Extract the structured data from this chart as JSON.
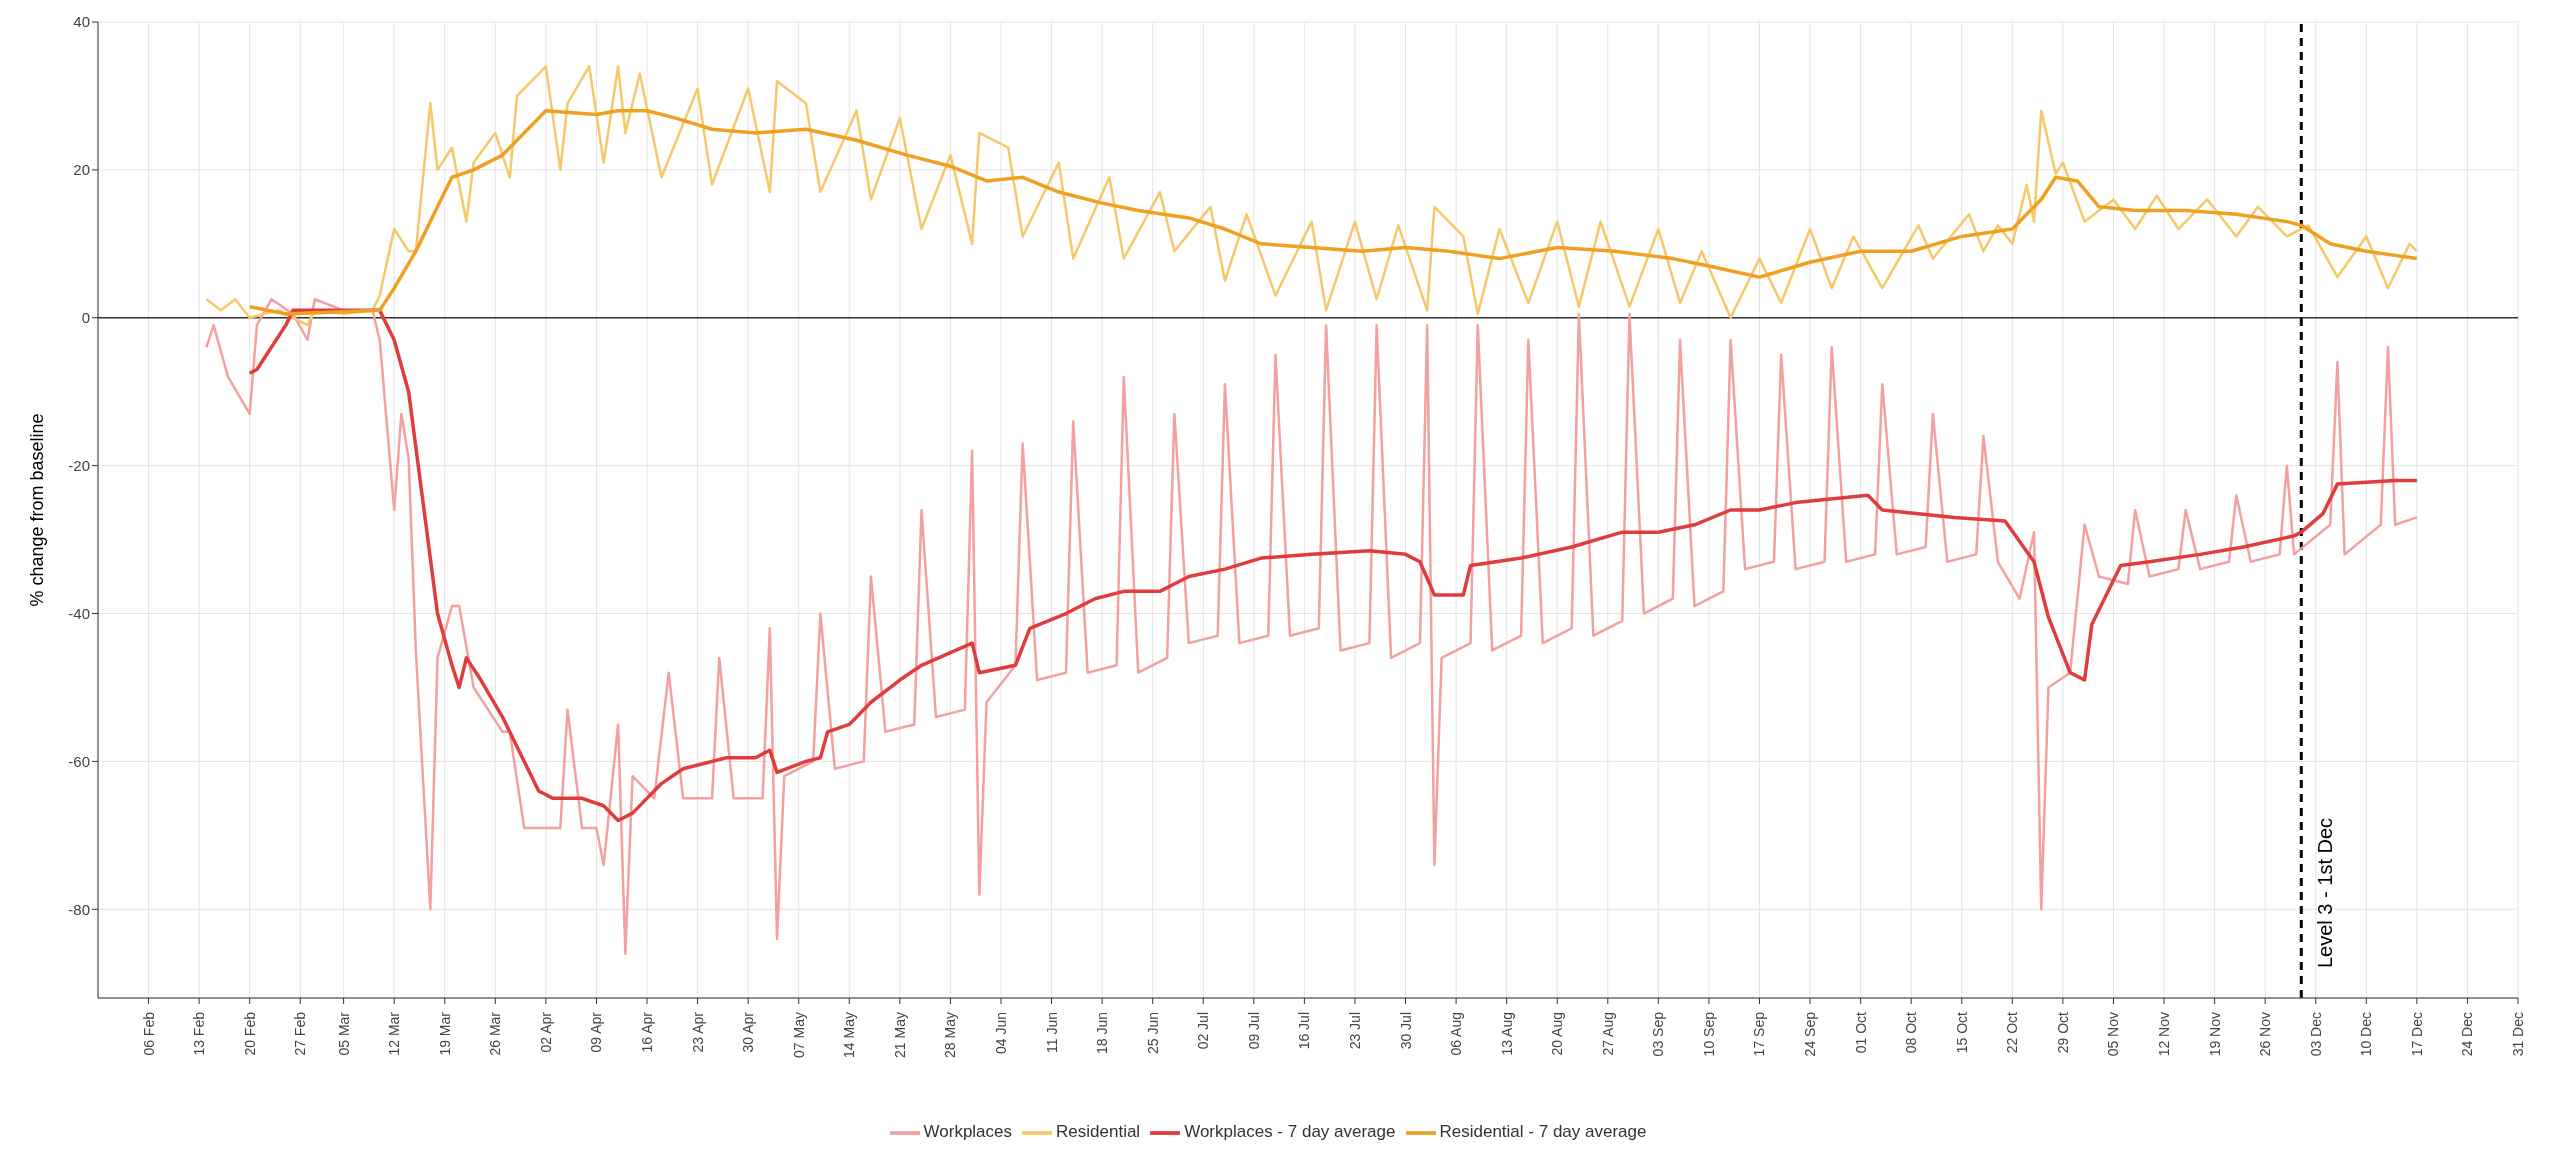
{
  "chart_data": {
    "type": "line",
    "ylabel": "% change from baseline",
    "xlim": [
      "--01-30",
      "--12-31"
    ],
    "ylim": [
      -92,
      40
    ],
    "yticks": [
      -80,
      -60,
      -40,
      -20,
      0,
      20,
      40
    ],
    "xticks": [
      {
        "value": "--02-06",
        "label": "06 Feb"
      },
      {
        "value": "--02-13",
        "label": "13 Feb"
      },
      {
        "value": "--02-20",
        "label": "20 Feb"
      },
      {
        "value": "--02-27",
        "label": "27 Feb"
      },
      {
        "value": "--03-05",
        "label": "05 Mar"
      },
      {
        "value": "--03-12",
        "label": "12 Mar"
      },
      {
        "value": "--03-19",
        "label": "19 Mar"
      },
      {
        "value": "--03-26",
        "label": "26 Mar"
      },
      {
        "value": "--04-02",
        "label": "02 Apr"
      },
      {
        "value": "--04-09",
        "label": "09 Apr"
      },
      {
        "value": "--04-16",
        "label": "16 Apr"
      },
      {
        "value": "--04-23",
        "label": "23 Apr"
      },
      {
        "value": "--04-30",
        "label": "30 Apr"
      },
      {
        "value": "--05-07",
        "label": "07 May"
      },
      {
        "value": "--05-14",
        "label": "14 May"
      },
      {
        "value": "--05-21",
        "label": "21 May"
      },
      {
        "value": "--05-28",
        "label": "28 May"
      },
      {
        "value": "--06-04",
        "label": "04 Jun"
      },
      {
        "value": "--06-11",
        "label": "11 Jun"
      },
      {
        "value": "--06-18",
        "label": "18 Jun"
      },
      {
        "value": "--06-25",
        "label": "25 Jun"
      },
      {
        "value": "--07-02",
        "label": "02 Jul"
      },
      {
        "value": "--07-09",
        "label": "09 Jul"
      },
      {
        "value": "--07-16",
        "label": "16 Jul"
      },
      {
        "value": "--07-23",
        "label": "23 Jul"
      },
      {
        "value": "--07-30",
        "label": "30 Jul"
      },
      {
        "value": "--08-06",
        "label": "06 Aug"
      },
      {
        "value": "--08-13",
        "label": "13 Aug"
      },
      {
        "value": "--08-20",
        "label": "20 Aug"
      },
      {
        "value": "--08-27",
        "label": "27 Aug"
      },
      {
        "value": "--09-03",
        "label": "03 Sep"
      },
      {
        "value": "--09-10",
        "label": "10 Sep"
      },
      {
        "value": "--09-17",
        "label": "17 Sep"
      },
      {
        "value": "--09-24",
        "label": "24 Sep"
      },
      {
        "value": "--10-01",
        "label": "01 Oct"
      },
      {
        "value": "--10-08",
        "label": "08 Oct"
      },
      {
        "value": "--10-15",
        "label": "15 Oct"
      },
      {
        "value": "--10-22",
        "label": "22 Oct"
      },
      {
        "value": "--10-29",
        "label": "29 Oct"
      },
      {
        "value": "--11-05",
        "label": "05 Nov"
      },
      {
        "value": "--11-12",
        "label": "12 Nov"
      },
      {
        "value": "--11-19",
        "label": "19 Nov"
      },
      {
        "value": "--11-26",
        "label": "26 Nov"
      },
      {
        "value": "--12-03",
        "label": "03 Dec"
      },
      {
        "value": "--12-10",
        "label": "10 Dec"
      },
      {
        "value": "--12-17",
        "label": "17 Dec"
      },
      {
        "value": "--12-24",
        "label": "24 Dec"
      },
      {
        "value": "--12-31",
        "label": "31 Dec"
      }
    ],
    "grid": true,
    "legend": "bottom",
    "marker": "none",
    "line_style": "solid",
    "ref_lines": [
      {
        "axis": "y",
        "value": 0,
        "color": "#333333",
        "line_style": "solid"
      },
      {
        "axis": "x",
        "value": "--12-01",
        "label": "Level 3 - 1st Dec",
        "color": "#000000",
        "line_style": "dashed"
      }
    ],
    "series": [
      {
        "name": "Workplaces",
        "color": "#f4a0a0",
        "x": [
          "--02-14",
          "--02-15",
          "--02-17",
          "--02-20",
          "--02-21",
          "--02-23",
          "--02-26",
          "--02-28",
          "--03-01",
          "--03-05",
          "--03-09",
          "--03-10",
          "--03-12",
          "--03-13",
          "--03-14",
          "--03-15",
          "--03-17",
          "--03-18",
          "--03-20",
          "--03-21",
          "--03-23",
          "--03-27",
          "--03-28",
          "--03-30",
          "--04-04",
          "--04-05",
          "--04-07",
          "--04-09",
          "--04-10",
          "--04-12",
          "--04-13",
          "--04-14",
          "--04-17",
          "--04-19",
          "--04-21",
          "--04-25",
          "--04-26",
          "--04-28",
          "--05-02",
          "--05-03",
          "--05-04",
          "--05-05",
          "--05-09",
          "--05-10",
          "--05-12",
          "--05-16",
          "--05-17",
          "--05-19",
          "--05-23",
          "--05-24",
          "--05-26",
          "--05-30",
          "--05-31",
          "--06-01",
          "--06-02",
          "--06-06",
          "--06-07",
          "--06-09",
          "--06-13",
          "--06-14",
          "--06-16",
          "--06-20",
          "--06-21",
          "--06-23",
          "--06-27",
          "--06-28",
          "--06-30",
          "--07-04",
          "--07-05",
          "--07-07",
          "--07-11",
          "--07-12",
          "--07-14",
          "--07-18",
          "--07-19",
          "--07-21",
          "--07-25",
          "--07-26",
          "--07-28",
          "--08-01",
          "--08-02",
          "--08-03",
          "--08-04",
          "--08-08",
          "--08-09",
          "--08-11",
          "--08-15",
          "--08-16",
          "--08-18",
          "--08-22",
          "--08-23",
          "--08-25",
          "--08-29",
          "--08-30",
          "--09-01",
          "--09-05",
          "--09-06",
          "--09-08",
          "--09-12",
          "--09-13",
          "--09-15",
          "--09-19",
          "--09-20",
          "--09-22",
          "--09-26",
          "--09-27",
          "--09-29",
          "--10-03",
          "--10-04",
          "--10-06",
          "--10-10",
          "--10-11",
          "--10-13",
          "--10-17",
          "--10-18",
          "--10-20",
          "--10-23",
          "--10-25",
          "--10-26",
          "--10-27",
          "--10-30",
          "--11-01",
          "--11-03",
          "--11-07",
          "--11-08",
          "--11-10",
          "--11-14",
          "--11-15",
          "--11-17",
          "--11-21",
          "--11-22",
          "--11-24",
          "--11-28",
          "--11-29",
          "--11-30",
          "--12-05",
          "--12-06",
          "--12-07",
          "--12-12",
          "--12-13",
          "--12-14",
          "--12-17"
        ],
        "values": [
          -4,
          -1,
          -8,
          -13,
          -1,
          2.5,
          0.5,
          -3,
          2.5,
          1,
          1,
          -3,
          -26,
          -13,
          -19,
          -45,
          -80,
          -46,
          -39,
          -39,
          -50,
          -56,
          -56,
          -69,
          -69,
          -53,
          -69,
          -69,
          -74,
          -55,
          -86,
          -62,
          -65,
          -48,
          -65,
          -65,
          -46,
          -65,
          -65,
          -42,
          -84,
          -62,
          -60,
          -40,
          -61,
          -60,
          -35,
          -56,
          -55,
          -26,
          -54,
          -53,
          -18,
          -78,
          -52,
          -47,
          -17,
          -49,
          -48,
          -14,
          -48,
          -47,
          -8,
          -48,
          -46,
          -13,
          -44,
          -43,
          -9,
          -44,
          -43,
          -5,
          -43,
          -42,
          -1,
          -45,
          -44,
          -1,
          -46,
          -44,
          -1,
          -74,
          -46,
          -44,
          -1,
          -45,
          -43,
          -3,
          -44,
          -42,
          0.5,
          -43,
          -41,
          0.5,
          -40,
          -38,
          -3,
          -39,
          -37,
          -3,
          -34,
          -33,
          -5,
          -34,
          -33,
          -4,
          -33,
          -32,
          -9,
          -32,
          -31,
          -13,
          -33,
          -32,
          -16,
          -33,
          -38,
          -29,
          -80,
          -50,
          -48,
          -28,
          -35,
          -36,
          -26,
          -35,
          -34,
          -26,
          -34,
          -33,
          -24,
          -33,
          -32,
          -20,
          -32,
          -28,
          -6,
          -32,
          -28,
          -4,
          -28,
          -27
        ]
      },
      {
        "name": "Residential",
        "color": "#f5c86a",
        "x": [
          "--02-14",
          "--02-16",
          "--02-18",
          "--02-20",
          "--02-24",
          "--02-28",
          "--03-01",
          "--03-05",
          "--03-09",
          "--03-10",
          "--03-12",
          "--03-14",
          "--03-15",
          "--03-17",
          "--03-18",
          "--03-20",
          "--03-22",
          "--03-23",
          "--03-26",
          "--03-28",
          "--03-29",
          "--04-02",
          "--04-04",
          "--04-05",
          "--04-08",
          "--04-10",
          "--04-12",
          "--04-13",
          "--04-15",
          "--04-18",
          "--04-23",
          "--04-25",
          "--04-30",
          "--05-03",
          "--05-04",
          "--05-08",
          "--05-10",
          "--05-15",
          "--05-17",
          "--05-21",
          "--05-24",
          "--05-28",
          "--05-31",
          "--06-01",
          "--06-05",
          "--06-07",
          "--06-12",
          "--06-14",
          "--06-19",
          "--06-21",
          "--06-26",
          "--06-28",
          "--07-03",
          "--07-05",
          "--07-08",
          "--07-12",
          "--07-17",
          "--07-19",
          "--07-23",
          "--07-26",
          "--07-29",
          "--08-02",
          "--08-03",
          "--08-07",
          "--08-09",
          "--08-12",
          "--08-16",
          "--08-20",
          "--08-23",
          "--08-26",
          "--08-30",
          "--09-03",
          "--09-06",
          "--09-09",
          "--09-13",
          "--09-17",
          "--09-20",
          "--09-24",
          "--09-27",
          "--09-30",
          "--10-04",
          "--10-09",
          "--10-11",
          "--10-16",
          "--10-18",
          "--10-20",
          "--10-22",
          "--10-24",
          "--10-25",
          "--10-26",
          "--10-28",
          "--10-29",
          "--11-01",
          "--11-05",
          "--11-08",
          "--11-11",
          "--11-14",
          "--11-18",
          "--11-22",
          "--11-25",
          "--11-29",
          "--12-02",
          "--12-06",
          "--12-10",
          "--12-13",
          "--12-16",
          "--12-17"
        ],
        "values": [
          2.5,
          1,
          2.5,
          0,
          1,
          -1,
          1,
          0.5,
          1,
          3,
          12,
          9,
          9,
          29,
          20,
          23,
          13,
          21,
          25,
          19,
          30,
          34,
          20,
          29,
          34,
          21,
          34,
          25,
          33,
          19,
          31,
          18,
          31,
          17,
          32,
          29,
          17,
          28,
          16,
          27,
          12,
          22,
          10,
          25,
          23,
          11,
          21,
          8,
          19,
          8,
          17,
          9,
          15,
          5,
          14,
          3,
          13,
          1,
          13,
          2.5,
          12.5,
          1,
          15,
          11,
          0.5,
          12,
          2,
          13,
          1.5,
          13,
          1.5,
          12,
          2,
          9,
          0,
          8,
          2,
          12,
          4,
          11,
          4,
          12.5,
          8,
          14,
          9,
          12.5,
          10,
          18,
          13,
          28,
          19.5,
          21,
          13,
          16,
          12,
          16.5,
          12,
          16,
          11,
          15,
          11,
          12.5,
          5.5,
          11,
          4,
          10,
          9
        ]
      },
      {
        "name": "Workplaces - 7 day average",
        "color": "#e03c3c",
        "x": [
          "--02-20",
          "--02-21",
          "--02-25",
          "--02-26",
          "--03-10",
          "--03-12",
          "--03-14",
          "--03-16",
          "--03-18",
          "--03-20",
          "--03-21",
          "--03-22",
          "--03-24",
          "--03-27",
          "--04-01",
          "--04-03",
          "--04-07",
          "--04-10",
          "--04-12",
          "--04-14",
          "--04-18",
          "--04-21",
          "--04-27",
          "--05-01",
          "--05-03",
          "--05-04",
          "--05-08",
          "--05-10",
          "--05-11",
          "--05-14",
          "--05-17",
          "--05-21",
          "--05-24",
          "--05-31",
          "--06-01",
          "--06-06",
          "--06-08",
          "--06-13",
          "--06-17",
          "--06-21",
          "--06-26",
          "--06-30",
          "--07-05",
          "--07-10",
          "--07-17",
          "--07-25",
          "--07-30",
          "--08-01",
          "--08-03",
          "--08-07",
          "--08-08",
          "--08-15",
          "--08-22",
          "--08-29",
          "--09-03",
          "--09-08",
          "--09-13",
          "--09-17",
          "--09-22",
          "--10-02",
          "--10-04",
          "--10-14",
          "--10-21",
          "--10-25",
          "--10-27",
          "--10-30",
          "--11-01",
          "--11-02",
          "--11-06",
          "--11-10",
          "--11-17",
          "--11-23",
          "--11-30",
          "--12-01",
          "--12-04",
          "--12-06",
          "--12-14",
          "--12-17"
        ],
        "values": [
          -7.5,
          -7,
          -1,
          1,
          1,
          -3,
          -10,
          -25,
          -40,
          -47,
          -50,
          -46,
          -49,
          -54,
          -64,
          -65,
          -65,
          -66,
          -68,
          -67,
          -63,
          -61,
          -59.5,
          -59.5,
          -58.5,
          -61.5,
          -60,
          -59.5,
          -56,
          -55,
          -52,
          -49,
          -47,
          -44,
          -48,
          -47,
          -42,
          -40,
          -38,
          -37,
          -37,
          -35,
          -34,
          -32.5,
          -32,
          -31.5,
          -32,
          -33,
          -37.5,
          -37.5,
          -33.5,
          -32.5,
          -31,
          -29,
          -29,
          -28,
          -26,
          -26,
          -25,
          -24,
          -26,
          -27,
          -27.5,
          -33,
          -40.5,
          -48,
          -49,
          -41.5,
          -33.5,
          -33,
          -32,
          -31,
          -29.5,
          -29,
          -26.5,
          -22.5,
          -22,
          -22
        ]
      },
      {
        "name": "Residential - 7 day average",
        "color": "#f0a020",
        "x": [
          "--02-20",
          "--02-25",
          "--03-10",
          "--03-12",
          "--03-15",
          "--03-18",
          "--03-20",
          "--03-23",
          "--03-27",
          "--03-31",
          "--04-02",
          "--04-09",
          "--04-12",
          "--04-16",
          "--04-20",
          "--04-25",
          "--05-01",
          "--05-08",
          "--05-15",
          "--05-22",
          "--05-28",
          "--06-02",
          "--06-07",
          "--06-12",
          "--06-18",
          "--06-23",
          "--06-30",
          "--07-05",
          "--07-10",
          "--07-17",
          "--07-24",
          "--07-30",
          "--08-05",
          "--08-12",
          "--08-20",
          "--08-28",
          "--09-05",
          "--09-10",
          "--09-17",
          "--09-24",
          "--10-01",
          "--10-08",
          "--10-15",
          "--10-22",
          "--10-26",
          "--10-28",
          "--10-31",
          "--11-03",
          "--11-08",
          "--11-15",
          "--11-22",
          "--11-29",
          "--12-01",
          "--12-05",
          "--12-10",
          "--12-17"
        ],
        "values": [
          1.5,
          0.5,
          1,
          4,
          9,
          15,
          19,
          20,
          22,
          26,
          28,
          27.5,
          28,
          28,
          27,
          25.5,
          25,
          25.5,
          24,
          22,
          20.5,
          18.5,
          19,
          17,
          15.5,
          14.5,
          13.5,
          12,
          10,
          9.5,
          9,
          9.5,
          9,
          8,
          9.5,
          9,
          8,
          7,
          5.5,
          7.5,
          9,
          9,
          11,
          12,
          16,
          19,
          18.5,
          15,
          14.5,
          14.5,
          14,
          13,
          12.5,
          10,
          9,
          8
        ]
      }
    ]
  }
}
